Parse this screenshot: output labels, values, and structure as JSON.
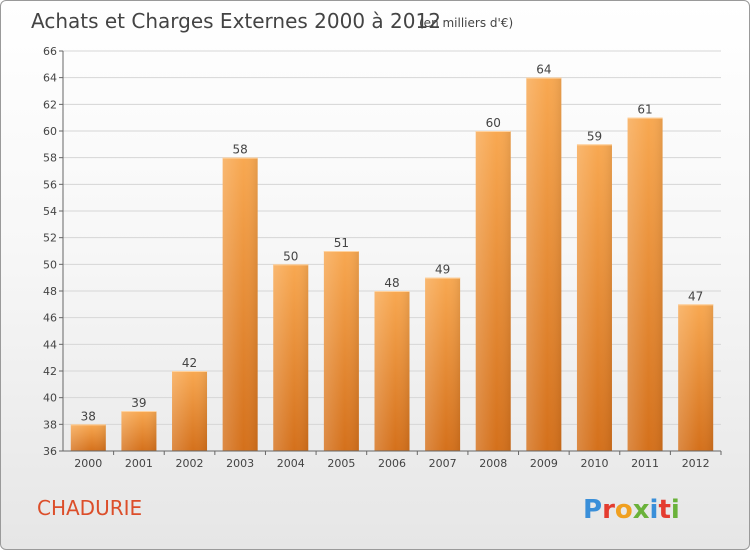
{
  "header": {
    "title": "Achats et Charges Externes 2000 à 2012",
    "subtitle": "(en milliers d'€)"
  },
  "footer": {
    "place": "CHADURIE",
    "logo_text": "Proxiti"
  },
  "colors": {
    "bar_top": "#f8a851",
    "bar_bottom": "#d4701b",
    "place": "#dc4e2a",
    "title": "#444444",
    "grid": "#d6d6d6"
  },
  "chart_data": {
    "type": "bar",
    "title": "Achats et Charges Externes 2000 à 2012",
    "subtitle": "(en milliers d'€)",
    "categories": [
      "2000",
      "2001",
      "2002",
      "2003",
      "2004",
      "2005",
      "2006",
      "2007",
      "2008",
      "2009",
      "2010",
      "2011",
      "2012"
    ],
    "values": [
      38,
      39,
      42,
      58,
      50,
      51,
      48,
      49,
      60,
      64,
      59,
      61,
      47
    ],
    "ylim": [
      36,
      66
    ],
    "yticks": [
      36,
      38,
      40,
      42,
      44,
      46,
      48,
      50,
      52,
      54,
      56,
      58,
      60,
      62,
      64,
      66
    ],
    "grid": true,
    "data_labels": true
  }
}
